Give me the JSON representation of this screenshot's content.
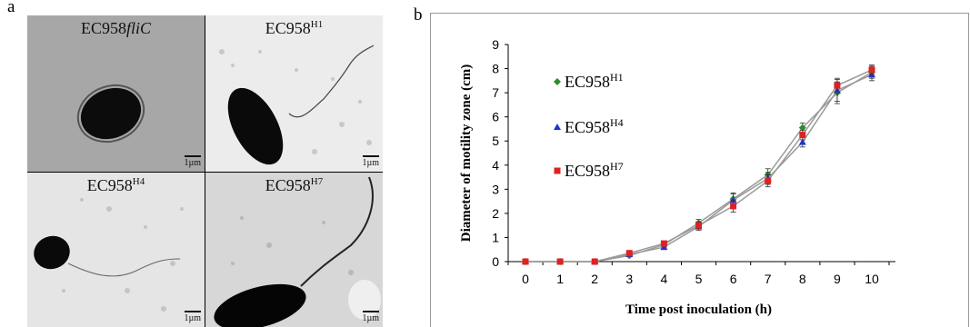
{
  "panels": {
    "a": "a",
    "b": "b"
  },
  "micrographs": [
    {
      "label": "EC958",
      "label_italic": "fliC",
      "label_sup": "",
      "scale": "1µm"
    },
    {
      "label": "EC958",
      "label_italic": "",
      "label_sup": "H1",
      "scale": "1µm"
    },
    {
      "label": "EC958",
      "label_italic": "",
      "label_sup": "H4",
      "scale": "1µm"
    },
    {
      "label": "EC958",
      "label_italic": "",
      "label_sup": "H7",
      "scale": "1µm"
    }
  ],
  "chart_data": {
    "type": "line",
    "xlabel": "Time post inoculation (h)",
    "ylabel": "Diameter of motility zone (cm)",
    "x": [
      0,
      1,
      2,
      3,
      4,
      5,
      6,
      7,
      8,
      9,
      10
    ],
    "xlim": [
      0,
      10
    ],
    "ylim": [
      0,
      9
    ],
    "yticks": [
      0,
      1,
      2,
      3,
      4,
      5,
      6,
      7,
      8,
      9
    ],
    "grid": false,
    "legend_placement": "top-left",
    "series": [
      {
        "name": "EC958",
        "sup": "H1",
        "color": "#2e8b2e",
        "marker": "diamond",
        "values": [
          0,
          0,
          0,
          0.25,
          0.7,
          1.6,
          2.6,
          3.6,
          5.55,
          7.0,
          7.85
        ],
        "errors": [
          0,
          0,
          0,
          0.05,
          0.1,
          0.15,
          0.25,
          0.25,
          0.2,
          0.45,
          0.25
        ]
      },
      {
        "name": "EC958",
        "sup": "H4",
        "color": "#2233cc",
        "marker": "triangle",
        "values": [
          0,
          0,
          0,
          0.3,
          0.6,
          1.45,
          2.55,
          3.45,
          4.95,
          7.1,
          7.75
        ],
        "errors": [
          0,
          0,
          0,
          0.05,
          0.1,
          0.15,
          0.25,
          0.25,
          0.2,
          0.45,
          0.25
        ]
      },
      {
        "name": "EC958",
        "sup": "H7",
        "color": "#dd2222",
        "marker": "square",
        "values": [
          0,
          0,
          0,
          0.35,
          0.75,
          1.5,
          2.3,
          3.35,
          5.25,
          7.3,
          7.95
        ],
        "errors": [
          0,
          0,
          0,
          0.05,
          0.1,
          0.15,
          0.25,
          0.25,
          0.2,
          0.3,
          0.2
        ]
      }
    ]
  }
}
